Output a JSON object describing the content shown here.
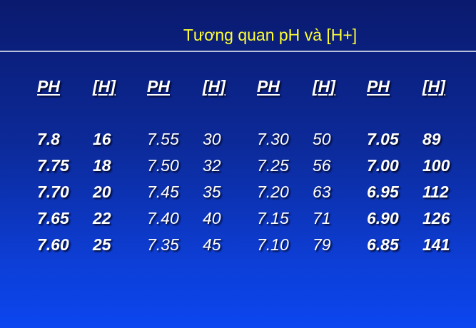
{
  "title": "Tương quan pH và [H+]",
  "table": {
    "groups": [
      {
        "ph_header": "PH",
        "h_header": "[H]",
        "bold": true,
        "rows": [
          {
            "ph": "7.8",
            "h": "16"
          },
          {
            "ph": "7.75",
            "h": "18"
          },
          {
            "ph": "7.70",
            "h": "20"
          },
          {
            "ph": "7.65",
            "h": "22"
          },
          {
            "ph": "7.60",
            "h": "25"
          }
        ]
      },
      {
        "ph_header": "PH",
        "h_header": "[H]",
        "bold": false,
        "rows": [
          {
            "ph": "7.55",
            "h": "30"
          },
          {
            "ph": "7.50",
            "h": "32"
          },
          {
            "ph": "7.45",
            "h": "35"
          },
          {
            "ph": "7.40",
            "h": "40"
          },
          {
            "ph": "7.35",
            "h": "45"
          }
        ]
      },
      {
        "ph_header": "PH",
        "h_header": "[H]",
        "bold": false,
        "rows": [
          {
            "ph": "7.30",
            "h": "50"
          },
          {
            "ph": "7.25",
            "h": "56"
          },
          {
            "ph": "7.20",
            "h": "63"
          },
          {
            "ph": "7.15",
            "h": "71"
          },
          {
            "ph": "7.10",
            "h": "79"
          }
        ]
      },
      {
        "ph_header": "PH",
        "h_header": "[H]",
        "bold": true,
        "rows": [
          {
            "ph": "7.05",
            "h": "89"
          },
          {
            "ph": "7.00",
            "h": "100"
          },
          {
            "ph": "6.95",
            "h": "112"
          },
          {
            "ph": "6.90",
            "h": "126"
          },
          {
            "ph": "6.85",
            "h": "141"
          }
        ]
      }
    ]
  },
  "colors": {
    "title": "#ffff33",
    "text": "#ffffff",
    "rule": "#b8c2dc"
  }
}
